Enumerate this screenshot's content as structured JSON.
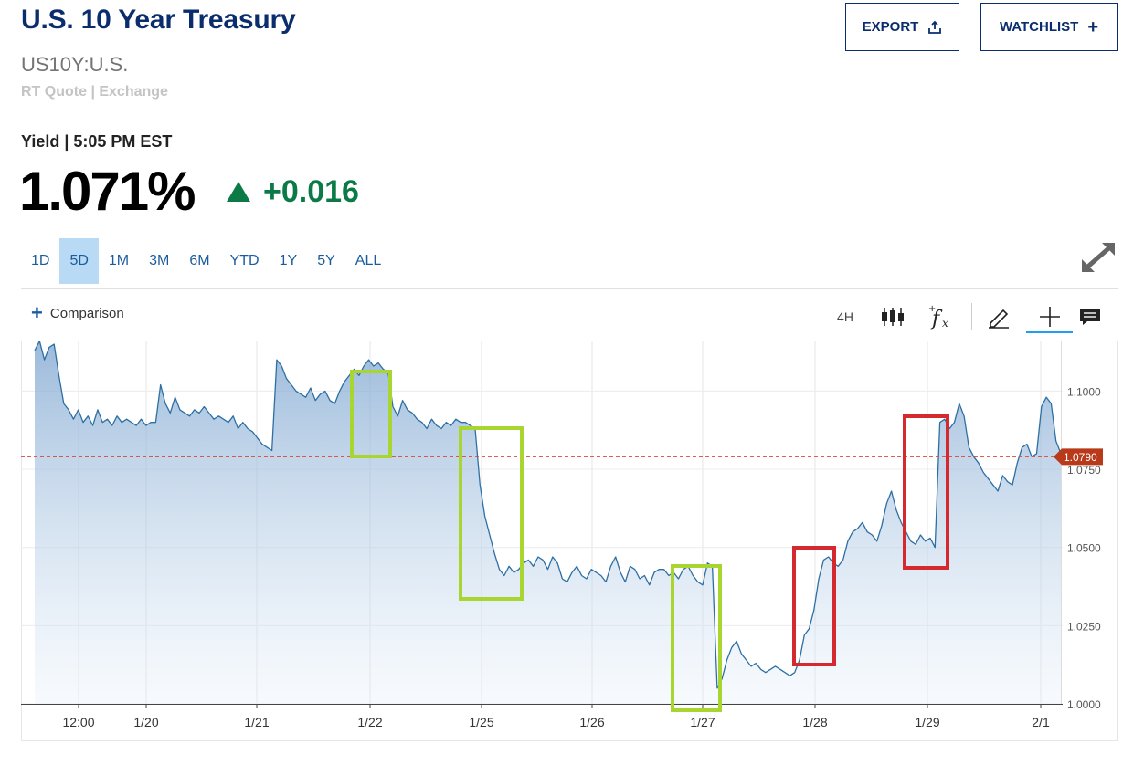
{
  "header": {
    "title": "U.S. 10 Year Treasury",
    "symbol": "US10Y:U.S.",
    "quote_source": "RT Quote | Exchange",
    "export_label": "EXPORT",
    "watchlist_label": "WATCHLIST"
  },
  "quote": {
    "label": "Yield | 5:05 PM EST",
    "value": "1.071%",
    "change": "+0.016",
    "change_color": "#0b7a47"
  },
  "ranges": [
    "1D",
    "5D",
    "1M",
    "3M",
    "6M",
    "YTD",
    "1Y",
    "5Y",
    "ALL"
  ],
  "active_range": "5D",
  "toolbar": {
    "comparison_label": "Comparison",
    "interval_label": "4H",
    "icons": [
      "candlestick-icon",
      "fx-studies-icon",
      "draw-pencil-icon",
      "crosshair-icon",
      "comment-icon"
    ]
  },
  "colors": {
    "title": "#0a2d6e",
    "line": "#2d6fa3",
    "highlight_green": "#a8d52f",
    "highlight_red": "#d42a2f",
    "last_price_tag": "#b83a1a"
  },
  "chart_data": {
    "type": "area",
    "x_tick_labels": [
      "12:00",
      "1/20",
      "1/21",
      "1/22",
      "1/25",
      "1/26",
      "1/27",
      "1/28",
      "1/29",
      "2/1"
    ],
    "y_tick_labels": [
      "1.1000",
      "1.0750",
      "1.0500",
      "1.0250",
      "1.0000"
    ],
    "ylim": [
      1.0,
      1.115
    ],
    "y_ticks": [
      1.1,
      1.075,
      1.05,
      1.025,
      1.0
    ],
    "last_value_label": "1.0790",
    "last_value": 1.079,
    "grid": true,
    "series": [
      {
        "values": [
          1.113,
          1.116,
          1.11,
          1.114,
          1.115,
          1.105,
          1.096,
          1.094,
          1.091,
          1.094,
          1.09,
          1.092,
          1.089,
          1.094,
          1.09,
          1.091,
          1.089,
          1.092,
          1.09,
          1.091,
          1.09,
          1.089,
          1.091,
          1.089,
          1.09,
          1.09,
          1.102,
          1.096,
          1.093,
          1.098,
          1.094,
          1.093,
          1.092,
          1.094,
          1.093,
          1.095,
          1.093,
          1.091,
          1.092,
          1.091,
          1.09,
          1.092,
          1.088,
          1.09,
          1.088,
          1.087,
          1.085,
          1.083,
          1.082,
          1.081,
          1.11,
          1.108,
          1.104,
          1.102,
          1.1,
          1.099,
          1.098,
          1.101,
          1.097,
          1.099,
          1.1,
          1.097,
          1.096,
          1.1,
          1.103,
          1.105,
          1.107,
          1.105,
          1.108,
          1.11,
          1.108,
          1.109,
          1.107,
          1.106,
          1.095,
          1.092,
          1.097,
          1.094,
          1.093,
          1.091,
          1.09,
          1.088,
          1.091,
          1.089,
          1.088,
          1.09,
          1.089,
          1.091,
          1.09,
          1.09,
          1.089,
          1.088,
          1.07,
          1.06,
          1.054,
          1.048,
          1.043,
          1.041,
          1.044,
          1.042,
          1.043,
          1.045,
          1.046,
          1.044,
          1.047,
          1.046,
          1.043,
          1.047,
          1.045,
          1.04,
          1.039,
          1.042,
          1.044,
          1.041,
          1.04,
          1.043,
          1.042,
          1.041,
          1.039,
          1.044,
          1.047,
          1.042,
          1.039,
          1.044,
          1.043,
          1.04,
          1.041,
          1.038,
          1.042,
          1.043,
          1.043,
          1.041,
          1.042,
          1.04,
          1.043,
          1.044,
          1.041,
          1.039,
          1.038,
          1.045,
          1.044,
          1.005,
          1.008,
          1.014,
          1.018,
          1.02,
          1.016,
          1.014,
          1.012,
          1.013,
          1.011,
          1.01,
          1.011,
          1.012,
          1.011,
          1.01,
          1.009,
          1.01,
          1.014,
          1.022,
          1.024,
          1.03,
          1.04,
          1.046,
          1.047,
          1.045,
          1.044,
          1.046,
          1.052,
          1.055,
          1.056,
          1.058,
          1.055,
          1.054,
          1.052,
          1.057,
          1.064,
          1.068,
          1.062,
          1.058,
          1.055,
          1.052,
          1.051,
          1.054,
          1.052,
          1.053,
          1.05,
          1.09,
          1.091,
          1.088,
          1.09,
          1.096,
          1.092,
          1.082,
          1.079,
          1.077,
          1.074,
          1.072,
          1.07,
          1.068,
          1.073,
          1.071,
          1.07,
          1.077,
          1.082,
          1.083,
          1.079,
          1.08,
          1.095,
          1.098,
          1.096,
          1.084,
          1.08
        ]
      }
    ]
  }
}
